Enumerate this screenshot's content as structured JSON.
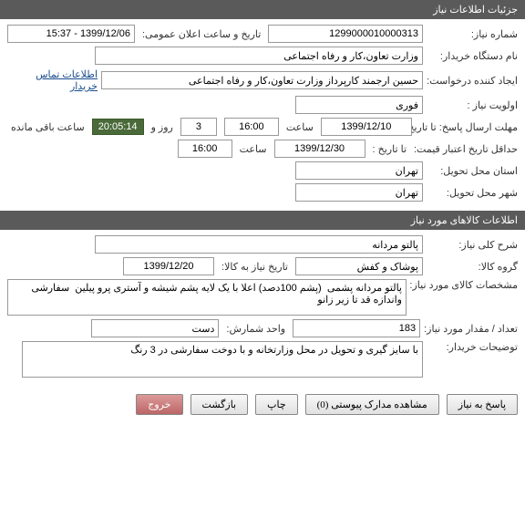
{
  "section1": {
    "title": "جزئیات اطلاعات نیاز",
    "need_number_label": "شماره نیاز:",
    "need_number": "1299000010000313",
    "announce_label": "تاریخ و ساعت اعلان عمومی:",
    "announce_value": "1399/12/06 - 15:37",
    "buyer_org_label": "نام دستگاه خریدار:",
    "buyer_org": "وزارت تعاون،کار و رفاه اجتماعی",
    "creator_label": "ایجاد کننده درخواست:",
    "creator": "حسین ارجمند کارپرداز وزارت تعاون،کار و رفاه اجتماعی",
    "contact_link": "اطلاعات تماس خریدار",
    "priority_label": "اولویت نیاز :",
    "priority": "فوری",
    "deadline_label": "مهلت ارسال پاسخ:  تا تاریخ :",
    "deadline_date": "1399/12/10",
    "time_label": "ساعت",
    "deadline_time": "16:00",
    "days_remaining": "3",
    "day_and": "روز و",
    "countdown": "20:05:14",
    "remaining_label": "ساعت باقی مانده",
    "validity_label": "حداقل تاریخ اعتبار قیمت:",
    "validity_to_label": "تا تاریخ :",
    "validity_date": "1399/12/30",
    "validity_time": "16:00",
    "delivery_province_label": "استان محل تحویل:",
    "delivery_province": "تهران",
    "delivery_city_label": "شهر محل تحویل:",
    "delivery_city": "تهران"
  },
  "section2": {
    "title": "اطلاعات کالاهای مورد نیاز",
    "summary_label": "شرح کلی نیاز:",
    "summary": "پالتو مردانه",
    "group_label": "گروه کالا:",
    "group": "پوشاک و کفش",
    "need_date_label": "تاریخ نیاز به کالا:",
    "need_date": "1399/12/20",
    "spec_label": "مشخصات کالای مورد نیاز:",
    "spec": "پالتو مردانه پشمی  (پشم 100دصد) اعلا با یک لایه پشم شیشه و آستری پرو پیلین  سفارشی واندازه قد تا زیر زانو",
    "qty_label": "تعداد / مقدار مورد نیاز:",
    "qty": "183",
    "unit_label": "واحد شمارش:",
    "unit": "دست",
    "notes_label": "توضیحات خریدار:",
    "notes": "با سایز گیری و تحویل در محل وزارتخانه و با دوخت سفارشی در 3 رنگ"
  },
  "buttons": {
    "respond": "پاسخ به نیاز",
    "attachments": "مشاهده مدارک پیوستی (0)",
    "print": "چاپ",
    "back": "بازگشت",
    "exit": "خروج"
  }
}
